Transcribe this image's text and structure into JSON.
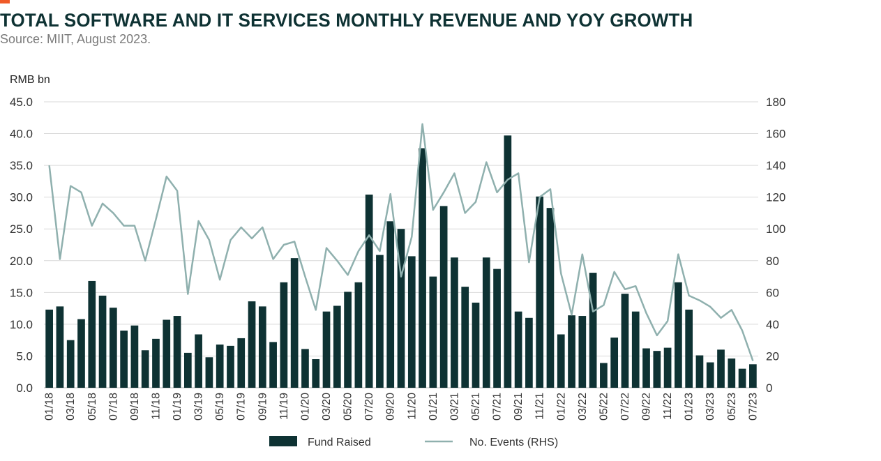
{
  "header": {
    "title": "TOTAL SOFTWARE AND IT SERVICES MONTHLY REVENUE AND YOY GROWTH",
    "subtitle": "Source: MIIT, August 2023."
  },
  "colors": {
    "accent": "#f05a28",
    "bar": "#0e3233",
    "line": "#8fb0ae",
    "grid": "#d9d9d9"
  },
  "chart_data": {
    "type": "bar",
    "ylabel": "RMB bn",
    "ylim": [
      0,
      45
    ],
    "y2lim": [
      0,
      180
    ],
    "yticks": [
      "0.0",
      "5.0",
      "10.0",
      "15.0",
      "20.0",
      "25.0",
      "30.0",
      "35.0",
      "40.0",
      "45.0"
    ],
    "y2ticks": [
      "0",
      "20",
      "40",
      "60",
      "80",
      "100",
      "120",
      "140",
      "160",
      "180"
    ],
    "grid": true,
    "legend_position": "bottom",
    "x": [
      "01/18",
      "02/18",
      "03/18",
      "04/18",
      "05/18",
      "06/18",
      "07/18",
      "08/18",
      "09/18",
      "10/18",
      "11/18",
      "12/18",
      "01/19",
      "02/19",
      "03/19",
      "04/19",
      "05/19",
      "06/19",
      "07/19",
      "08/19",
      "09/19",
      "10/19",
      "11/19",
      "12/19",
      "01/20",
      "02/20",
      "03/20",
      "04/20",
      "05/20",
      "06/20",
      "07/20",
      "08/20",
      "09/20",
      "10/20",
      "11/20",
      "12/20",
      "01/21",
      "02/21",
      "03/21",
      "04/21",
      "05/21",
      "06/21",
      "07/21",
      "08/21",
      "09/21",
      "10/21",
      "11/21",
      "12/21",
      "01/22",
      "02/22",
      "03/22",
      "04/22",
      "05/22",
      "06/22",
      "07/22",
      "08/22",
      "09/22",
      "10/22",
      "11/22",
      "12/22",
      "01/23",
      "02/23",
      "03/23",
      "04/23",
      "05/23",
      "06/23",
      "07/23"
    ],
    "xtick_labels": [
      "01/18",
      "03/18",
      "05/18",
      "07/18",
      "09/18",
      "11/18",
      "01/19",
      "03/19",
      "05/19",
      "07/19",
      "09/19",
      "11/19",
      "01/20",
      "03/20",
      "05/20",
      "07/20",
      "09/20",
      "11/20",
      "01/21",
      "03/21",
      "05/21",
      "07/21",
      "09/21",
      "11/21",
      "01/22",
      "03/22",
      "05/22",
      "07/22",
      "09/22",
      "11/22",
      "01/23",
      "03/23",
      "05/23",
      "07/23"
    ],
    "series": [
      {
        "name": "Fund Raised",
        "type": "bar",
        "axis": "left",
        "values": [
          12.3,
          12.8,
          7.5,
          10.8,
          16.8,
          14.5,
          12.6,
          9.0,
          9.8,
          5.9,
          7.7,
          10.7,
          11.3,
          5.5,
          8.4,
          4.8,
          6.8,
          6.6,
          7.8,
          13.6,
          12.8,
          7.2,
          16.6,
          20.4,
          6.1,
          4.5,
          12.0,
          12.9,
          15.1,
          16.6,
          30.4,
          20.9,
          26.2,
          25.0,
          20.7,
          37.7,
          17.5,
          28.6,
          20.5,
          15.9,
          13.4,
          20.5,
          18.7,
          39.7,
          12.0,
          11.0,
          30.1,
          28.3,
          8.4,
          11.4,
          11.3,
          18.1,
          3.9,
          7.9,
          14.8,
          12.0,
          6.2,
          5.8,
          6.3,
          16.6,
          12.3,
          5.1,
          4.0,
          6.0,
          4.6,
          3.0,
          3.7
        ]
      },
      {
        "name": "No. Events (RHS)",
        "type": "line",
        "axis": "right",
        "values": [
          140,
          81,
          127,
          123,
          102,
          116,
          110,
          102,
          102,
          80,
          106,
          133,
          124,
          59,
          105,
          93,
          68,
          93,
          101,
          94,
          101,
          81,
          90,
          92,
          70,
          49,
          88,
          80,
          71,
          86,
          96,
          86,
          122,
          70,
          95,
          166,
          112,
          123,
          135,
          110,
          117,
          142,
          123,
          131,
          135,
          79,
          120,
          125,
          72,
          46,
          84,
          48,
          52,
          73,
          62,
          64,
          47,
          33,
          42,
          84,
          58,
          55,
          51,
          44,
          49,
          36,
          17
        ]
      }
    ]
  }
}
